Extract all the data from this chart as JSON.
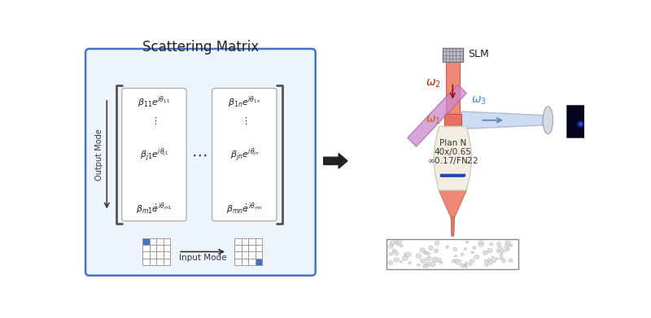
{
  "bg_color": "#ffffff",
  "left_box_color": "#4472c4",
  "left_box_bg": "#eef4fb",
  "title_left": "Scattering Matrix",
  "title_fontsize": 12,
  "output_mode_label": "Output Mode",
  "input_mode_label": "Input Mode",
  "matrix_entries_col1": [
    "$\\beta_{11}e^{i\\theta_{11}}$",
    "$\\vdots$",
    "$\\beta_{j1}e^{i\\theta_{j1}}$",
    "$\\vdots$",
    "$\\beta_{m1}e^{i\\theta_{m1}}$"
  ],
  "matrix_entries_col2": [
    "$\\beta_{1n}e^{i\\theta_{1n}}$",
    "$\\vdots$",
    "$\\beta_{jn}e^{i\\theta_{jn}}$",
    "$\\vdots$",
    "$\\beta_{mn}e^{i\\theta_{mn}}$"
  ],
  "arrow_color": "#333333",
  "grid_blue_color": "#4472c4",
  "slm_label": "SLM",
  "omega1_label": "$\\omega_1$",
  "omega2_label": "$\\omega_2$",
  "omega3_label": "$\\omega_3$",
  "omega1_color": "#cc6600",
  "omega2_color": "#bb2200",
  "omega3_color": "#4488cc",
  "objective_text1": "Plan N",
  "objective_text2": "40x/0.65",
  "objective_text3": "$\\infty$0.17/FN22",
  "salmon_color": "#f08878",
  "dark_salmon": "#e06858",
  "objective_body_color": "#f2ede0",
  "objective_ring_color": "#2244bb",
  "lens_color": "#d8dfe8",
  "screen_color": "#050520"
}
